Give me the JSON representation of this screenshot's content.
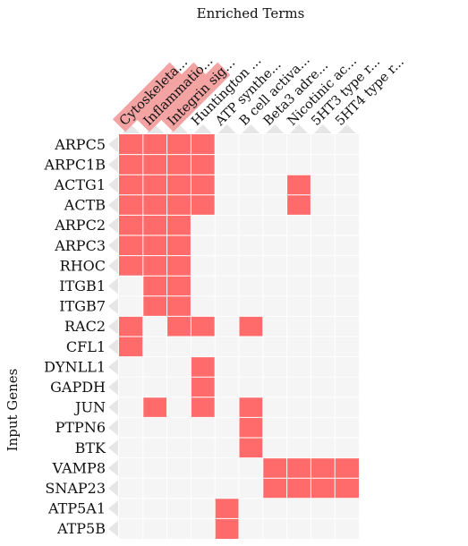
{
  "chart_data": {
    "type": "heatmap",
    "title": "Enriched Terms",
    "xlabel": "",
    "ylabel": "Input Genes",
    "columns": [
      "Cytoskeleta...",
      "Inflammatio...",
      "Integrin sig...",
      "Huntington ...",
      "ATP synthe...",
      "B cell activa...",
      "Beta3 adre...",
      "Nicotinic ac...",
      "5HT3 type r...",
      "5HT4 type r..."
    ],
    "rows": [
      "ARPC5",
      "ARPC1B",
      "ACTG1",
      "ACTB",
      "ARPC2",
      "ARPC3",
      "RHOC",
      "ITGB1",
      "ITGB7",
      "RAC2",
      "CFL1",
      "DYNLL1",
      "GAPDH",
      "JUN",
      "PTPN6",
      "BTK",
      "VAMP8",
      "SNAP23",
      "ATP5A1",
      "ATP5B"
    ],
    "values": [
      [
        1,
        1,
        1,
        1,
        0,
        0,
        0,
        0,
        0,
        0
      ],
      [
        1,
        1,
        1,
        1,
        0,
        0,
        0,
        0,
        0,
        0
      ],
      [
        1,
        1,
        1,
        1,
        0,
        0,
        0,
        1,
        0,
        0
      ],
      [
        1,
        1,
        1,
        1,
        0,
        0,
        0,
        1,
        0,
        0
      ],
      [
        1,
        1,
        1,
        0,
        0,
        0,
        0,
        0,
        0,
        0
      ],
      [
        1,
        1,
        1,
        0,
        0,
        0,
        0,
        0,
        0,
        0
      ],
      [
        1,
        1,
        1,
        0,
        0,
        0,
        0,
        0,
        0,
        0
      ],
      [
        0,
        1,
        1,
        0,
        0,
        0,
        0,
        0,
        0,
        0
      ],
      [
        0,
        1,
        1,
        0,
        0,
        0,
        0,
        0,
        0,
        0
      ],
      [
        1,
        0,
        1,
        1,
        0,
        1,
        0,
        0,
        0,
        0
      ],
      [
        1,
        0,
        0,
        0,
        0,
        0,
        0,
        0,
        0,
        0
      ],
      [
        0,
        0,
        0,
        1,
        0,
        0,
        0,
        0,
        0,
        0
      ],
      [
        0,
        0,
        0,
        1,
        0,
        0,
        0,
        0,
        0,
        0
      ],
      [
        0,
        1,
        0,
        1,
        0,
        1,
        0,
        0,
        0,
        0
      ],
      [
        0,
        0,
        0,
        0,
        0,
        1,
        0,
        0,
        0,
        0
      ],
      [
        0,
        0,
        0,
        0,
        0,
        1,
        0,
        0,
        0,
        0
      ],
      [
        0,
        0,
        0,
        0,
        0,
        0,
        1,
        1,
        1,
        1
      ],
      [
        0,
        0,
        0,
        0,
        0,
        0,
        1,
        1,
        1,
        1
      ],
      [
        0,
        0,
        0,
        0,
        1,
        0,
        0,
        0,
        0,
        0
      ],
      [
        0,
        0,
        0,
        0,
        1,
        0,
        0,
        0,
        0,
        0
      ]
    ],
    "colors": {
      "on": "#ff6b6b",
      "off": "#f5f5f5",
      "highlight_label_bg": "#f4a3a3",
      "grid_line": "#ffffff",
      "tab": "#e6e6e6"
    },
    "highlighted_columns": [
      0,
      1,
      2
    ]
  }
}
